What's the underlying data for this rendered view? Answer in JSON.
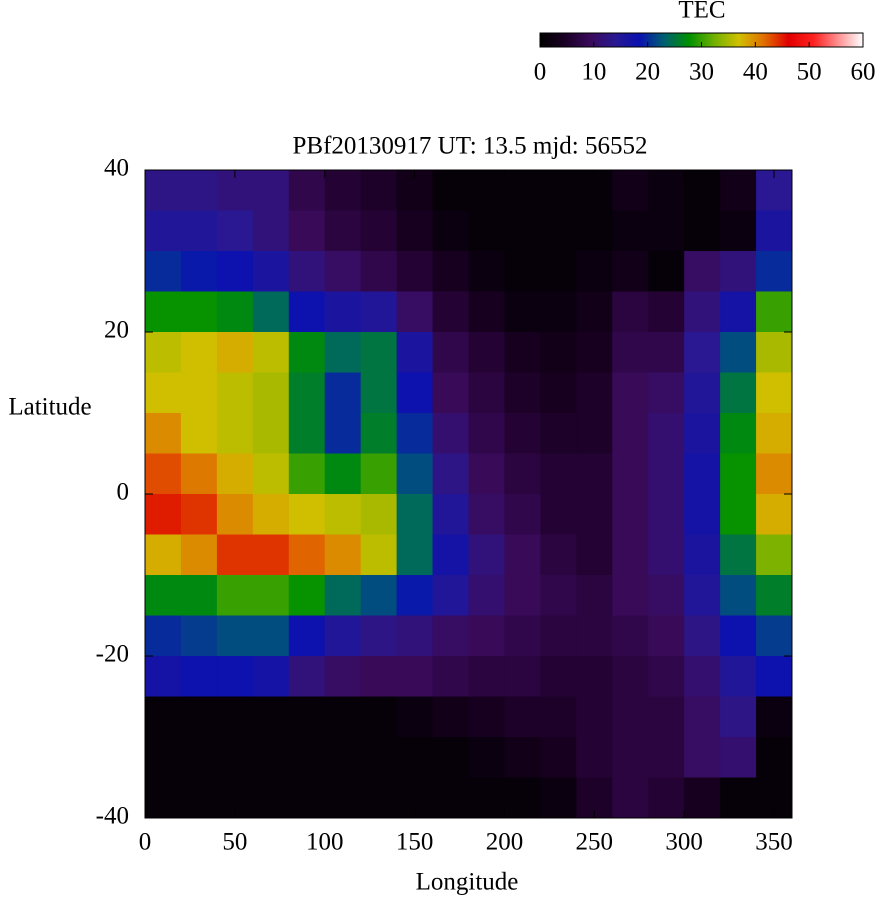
{
  "chart_data": {
    "type": "heatmap",
    "title": "PBf20130917  UT: 13.5  mjd: 56552",
    "x_label": "Longitude",
    "y_label": "Latitude",
    "x": [
      10,
      30,
      50,
      70,
      90,
      110,
      130,
      150,
      170,
      190,
      210,
      230,
      250,
      270,
      290,
      310,
      330,
      350
    ],
    "y": [
      37.5,
      32.5,
      27.5,
      22.5,
      17.5,
      12.5,
      7.5,
      2.5,
      -2.5,
      -7.5,
      -12.5,
      -17.5,
      -22.5,
      -27.5,
      -32.5,
      -37.5
    ],
    "values": [
      [
        13,
        13,
        12,
        12,
        8,
        6,
        5,
        3,
        1,
        1,
        1,
        1,
        1,
        3,
        2,
        1,
        3,
        14
      ],
      [
        15,
        15,
        14,
        12,
        9,
        7,
        6,
        4,
        2,
        1,
        1,
        1,
        1,
        2,
        2,
        1,
        2,
        16
      ],
      [
        20,
        19,
        18,
        16,
        12,
        10,
        8,
        6,
        4,
        2,
        1,
        1,
        2,
        3,
        1,
        10,
        12,
        20
      ],
      [
        28,
        28,
        27,
        24,
        18,
        16,
        15,
        10,
        6,
        4,
        2,
        2,
        3,
        7,
        6,
        12,
        17,
        30
      ],
      [
        36,
        37,
        38,
        36,
        27,
        24,
        25,
        16,
        8,
        6,
        4,
        3,
        4,
        8,
        8,
        14,
        22,
        35
      ],
      [
        37,
        37,
        36,
        35,
        26,
        20,
        25,
        18,
        9,
        7,
        5,
        4,
        5,
        9,
        10,
        15,
        25,
        37
      ],
      [
        40,
        37,
        36,
        35,
        26,
        20,
        26,
        20,
        11,
        8,
        6,
        5,
        5,
        9,
        11,
        16,
        27,
        38
      ],
      [
        43,
        41,
        38,
        36,
        30,
        27,
        30,
        22,
        13,
        9,
        7,
        6,
        6,
        9,
        11,
        17,
        28,
        40
      ],
      [
        45,
        44,
        40,
        38,
        37,
        36,
        35,
        24,
        15,
        10,
        8,
        6,
        6,
        9,
        11,
        17,
        28,
        38
      ],
      [
        38,
        40,
        44,
        44,
        42,
        40,
        36,
        24,
        17,
        12,
        9,
        7,
        6,
        9,
        11,
        16,
        25,
        33
      ],
      [
        27,
        27,
        30,
        30,
        28,
        24,
        22,
        19,
        15,
        11,
        9,
        8,
        7,
        9,
        10,
        15,
        22,
        26
      ],
      [
        20,
        21,
        22,
        22,
        18,
        15,
        13,
        12,
        10,
        9,
        8,
        7,
        7,
        8,
        9,
        13,
        18,
        21
      ],
      [
        17,
        18,
        18,
        17,
        12,
        10,
        9,
        9,
        8,
        7,
        7,
        6,
        6,
        7,
        8,
        11,
        15,
        18
      ],
      [
        1,
        1,
        1,
        1,
        1,
        1,
        1,
        2,
        3,
        4,
        5,
        5,
        6,
        7,
        7,
        10,
        13,
        2
      ],
      [
        1,
        1,
        1,
        1,
        1,
        1,
        1,
        1,
        1,
        2,
        3,
        4,
        6,
        7,
        7,
        10,
        11,
        1
      ],
      [
        1,
        1,
        1,
        1,
        1,
        1,
        1,
        1,
        1,
        1,
        1,
        2,
        5,
        7,
        6,
        4,
        1,
        1
      ]
    ],
    "xlim": [
      0,
      360
    ],
    "xticks": [
      0,
      50,
      100,
      150,
      200,
      250,
      300,
      350
    ],
    "ylim": [
      -40,
      40
    ],
    "yticks": [
      -40,
      -20,
      0,
      20,
      40
    ],
    "colorbar": {
      "label": "TEC",
      "lim": [
        0,
        60
      ],
      "ticks": [
        0,
        10,
        20,
        30,
        40,
        50,
        60
      ]
    },
    "colormap": [
      "#000000",
      "#1a0024",
      "#3a0a5a",
      "#2a1890",
      "#0a10b0",
      "#006070",
      "#009000",
      "#70b000",
      "#d0c000",
      "#e07000",
      "#e00000",
      "#ff2020",
      "#ff9090",
      "#ffffff"
    ]
  }
}
